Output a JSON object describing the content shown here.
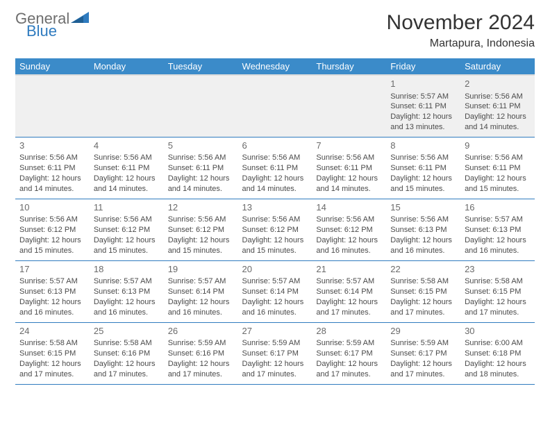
{
  "logo": {
    "line1": "General",
    "line2": "Blue"
  },
  "title": "November 2024",
  "subtitle": "Martapura, Indonesia",
  "colors": {
    "header_bg": "#3b8bc9",
    "header_text": "#ffffff",
    "row_border": "#2f7bbf",
    "logo_gray": "#6e6e6e",
    "logo_blue": "#2f7bbf"
  },
  "day_headers": [
    "Sunday",
    "Monday",
    "Tuesday",
    "Wednesday",
    "Thursday",
    "Friday",
    "Saturday"
  ],
  "weeks": [
    [
      null,
      null,
      null,
      null,
      null,
      {
        "n": "1",
        "sunrise": "Sunrise: 5:57 AM",
        "sunset": "Sunset: 6:11 PM",
        "day1": "Daylight: 12 hours",
        "day2": "and 13 minutes."
      },
      {
        "n": "2",
        "sunrise": "Sunrise: 5:56 AM",
        "sunset": "Sunset: 6:11 PM",
        "day1": "Daylight: 12 hours",
        "day2": "and 14 minutes."
      }
    ],
    [
      {
        "n": "3",
        "sunrise": "Sunrise: 5:56 AM",
        "sunset": "Sunset: 6:11 PM",
        "day1": "Daylight: 12 hours",
        "day2": "and 14 minutes."
      },
      {
        "n": "4",
        "sunrise": "Sunrise: 5:56 AM",
        "sunset": "Sunset: 6:11 PM",
        "day1": "Daylight: 12 hours",
        "day2": "and 14 minutes."
      },
      {
        "n": "5",
        "sunrise": "Sunrise: 5:56 AM",
        "sunset": "Sunset: 6:11 PM",
        "day1": "Daylight: 12 hours",
        "day2": "and 14 minutes."
      },
      {
        "n": "6",
        "sunrise": "Sunrise: 5:56 AM",
        "sunset": "Sunset: 6:11 PM",
        "day1": "Daylight: 12 hours",
        "day2": "and 14 minutes."
      },
      {
        "n": "7",
        "sunrise": "Sunrise: 5:56 AM",
        "sunset": "Sunset: 6:11 PM",
        "day1": "Daylight: 12 hours",
        "day2": "and 14 minutes."
      },
      {
        "n": "8",
        "sunrise": "Sunrise: 5:56 AM",
        "sunset": "Sunset: 6:11 PM",
        "day1": "Daylight: 12 hours",
        "day2": "and 15 minutes."
      },
      {
        "n": "9",
        "sunrise": "Sunrise: 5:56 AM",
        "sunset": "Sunset: 6:11 PM",
        "day1": "Daylight: 12 hours",
        "day2": "and 15 minutes."
      }
    ],
    [
      {
        "n": "10",
        "sunrise": "Sunrise: 5:56 AM",
        "sunset": "Sunset: 6:12 PM",
        "day1": "Daylight: 12 hours",
        "day2": "and 15 minutes."
      },
      {
        "n": "11",
        "sunrise": "Sunrise: 5:56 AM",
        "sunset": "Sunset: 6:12 PM",
        "day1": "Daylight: 12 hours",
        "day2": "and 15 minutes."
      },
      {
        "n": "12",
        "sunrise": "Sunrise: 5:56 AM",
        "sunset": "Sunset: 6:12 PM",
        "day1": "Daylight: 12 hours",
        "day2": "and 15 minutes."
      },
      {
        "n": "13",
        "sunrise": "Sunrise: 5:56 AM",
        "sunset": "Sunset: 6:12 PM",
        "day1": "Daylight: 12 hours",
        "day2": "and 15 minutes."
      },
      {
        "n": "14",
        "sunrise": "Sunrise: 5:56 AM",
        "sunset": "Sunset: 6:12 PM",
        "day1": "Daylight: 12 hours",
        "day2": "and 16 minutes."
      },
      {
        "n": "15",
        "sunrise": "Sunrise: 5:56 AM",
        "sunset": "Sunset: 6:13 PM",
        "day1": "Daylight: 12 hours",
        "day2": "and 16 minutes."
      },
      {
        "n": "16",
        "sunrise": "Sunrise: 5:57 AM",
        "sunset": "Sunset: 6:13 PM",
        "day1": "Daylight: 12 hours",
        "day2": "and 16 minutes."
      }
    ],
    [
      {
        "n": "17",
        "sunrise": "Sunrise: 5:57 AM",
        "sunset": "Sunset: 6:13 PM",
        "day1": "Daylight: 12 hours",
        "day2": "and 16 minutes."
      },
      {
        "n": "18",
        "sunrise": "Sunrise: 5:57 AM",
        "sunset": "Sunset: 6:13 PM",
        "day1": "Daylight: 12 hours",
        "day2": "and 16 minutes."
      },
      {
        "n": "19",
        "sunrise": "Sunrise: 5:57 AM",
        "sunset": "Sunset: 6:14 PM",
        "day1": "Daylight: 12 hours",
        "day2": "and 16 minutes."
      },
      {
        "n": "20",
        "sunrise": "Sunrise: 5:57 AM",
        "sunset": "Sunset: 6:14 PM",
        "day1": "Daylight: 12 hours",
        "day2": "and 16 minutes."
      },
      {
        "n": "21",
        "sunrise": "Sunrise: 5:57 AM",
        "sunset": "Sunset: 6:14 PM",
        "day1": "Daylight: 12 hours",
        "day2": "and 17 minutes."
      },
      {
        "n": "22",
        "sunrise": "Sunrise: 5:58 AM",
        "sunset": "Sunset: 6:15 PM",
        "day1": "Daylight: 12 hours",
        "day2": "and 17 minutes."
      },
      {
        "n": "23",
        "sunrise": "Sunrise: 5:58 AM",
        "sunset": "Sunset: 6:15 PM",
        "day1": "Daylight: 12 hours",
        "day2": "and 17 minutes."
      }
    ],
    [
      {
        "n": "24",
        "sunrise": "Sunrise: 5:58 AM",
        "sunset": "Sunset: 6:15 PM",
        "day1": "Daylight: 12 hours",
        "day2": "and 17 minutes."
      },
      {
        "n": "25",
        "sunrise": "Sunrise: 5:58 AM",
        "sunset": "Sunset: 6:16 PM",
        "day1": "Daylight: 12 hours",
        "day2": "and 17 minutes."
      },
      {
        "n": "26",
        "sunrise": "Sunrise: 5:59 AM",
        "sunset": "Sunset: 6:16 PM",
        "day1": "Daylight: 12 hours",
        "day2": "and 17 minutes."
      },
      {
        "n": "27",
        "sunrise": "Sunrise: 5:59 AM",
        "sunset": "Sunset: 6:17 PM",
        "day1": "Daylight: 12 hours",
        "day2": "and 17 minutes."
      },
      {
        "n": "28",
        "sunrise": "Sunrise: 5:59 AM",
        "sunset": "Sunset: 6:17 PM",
        "day1": "Daylight: 12 hours",
        "day2": "and 17 minutes."
      },
      {
        "n": "29",
        "sunrise": "Sunrise: 5:59 AM",
        "sunset": "Sunset: 6:17 PM",
        "day1": "Daylight: 12 hours",
        "day2": "and 17 minutes."
      },
      {
        "n": "30",
        "sunrise": "Sunrise: 6:00 AM",
        "sunset": "Sunset: 6:18 PM",
        "day1": "Daylight: 12 hours",
        "day2": "and 18 minutes."
      }
    ]
  ]
}
